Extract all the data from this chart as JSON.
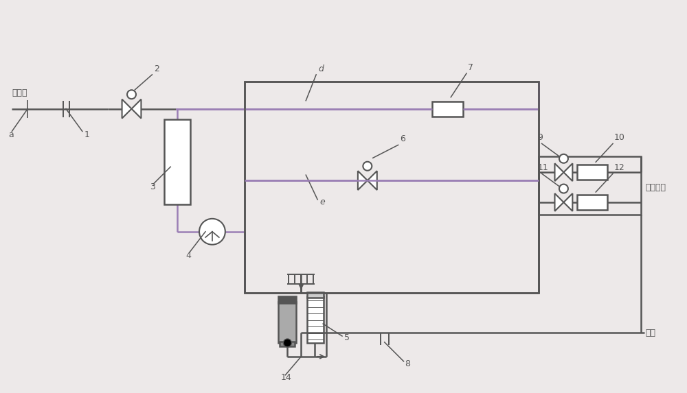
{
  "bg_color": "#ede9e9",
  "line_color": "#555555",
  "line_width": 1.8,
  "labels": {
    "zi_lai_shui": "自来水",
    "nong_shui": "浓水排放",
    "chun_shui": "纯水",
    "a": "a",
    "d": "d",
    "e": "e",
    "n1": "1",
    "n2": "2",
    "n3": "3",
    "n4": "4",
    "n5": "5",
    "n6": "6",
    "n7": "7",
    "n8": "8",
    "n9": "9",
    "n10": "10",
    "n11": "11",
    "n12": "12",
    "n14": "14"
  }
}
